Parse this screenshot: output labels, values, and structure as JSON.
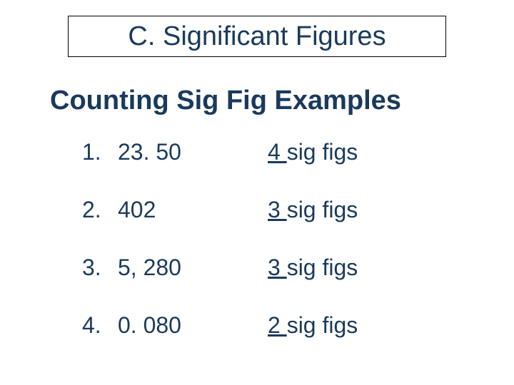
{
  "title": "C. Significant Figures",
  "subtitle": "Counting Sig Fig Examples",
  "colors": {
    "text": "#1a3a5c",
    "border": "#000000",
    "background": "#ffffff"
  },
  "fonts": {
    "title_size": 38,
    "subtitle_size": 38,
    "row_size": 32,
    "family": "Arial"
  },
  "examples": [
    {
      "index": "1.",
      "value": "23. 50",
      "count": "4 ",
      "label": "sig figs"
    },
    {
      "index": "2.",
      "value": "402",
      "count": "3 ",
      "label": "sig figs"
    },
    {
      "index": "3.",
      "value": "5, 280",
      "count": "3 ",
      "label": "sig figs"
    },
    {
      "index": "4.",
      "value": "0. 080",
      "count": "2 ",
      "label": "sig figs"
    }
  ]
}
